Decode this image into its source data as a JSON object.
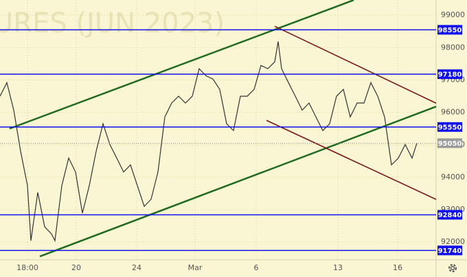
{
  "chart_data": {
    "type": "line",
    "watermark": "URES (JUN 2023)",
    "xlim": [
      0,
      127
    ],
    "xticks": [
      {
        "value": 8,
        "label": "18:00"
      },
      {
        "value": 22.2,
        "label": "20"
      },
      {
        "value": 39.8,
        "label": "24"
      },
      {
        "value": 56.8,
        "label": "Mar"
      },
      {
        "value": 74.6,
        "label": "6"
      },
      {
        "value": 98.4,
        "label": "13"
      },
      {
        "value": 115.8,
        "label": "16"
      }
    ],
    "ylim": [
      91450,
      99470
    ],
    "yticks": [
      92000,
      93000,
      94000,
      95000,
      96000,
      97000,
      98000,
      99000
    ],
    "grid": true,
    "x": [
      0,
      2,
      4,
      6,
      8,
      9,
      11,
      13,
      15,
      16,
      18,
      20,
      22,
      24,
      26,
      28,
      30,
      32,
      34,
      36,
      38,
      40,
      42,
      44,
      46,
      48,
      50,
      52,
      54,
      56,
      58,
      60,
      62,
      64,
      66,
      68,
      70,
      72,
      74,
      76,
      78,
      80,
      81,
      82,
      84,
      86,
      88,
      90,
      92,
      94,
      96,
      98,
      100,
      102,
      104,
      106,
      108,
      110,
      112,
      114,
      116,
      118,
      120,
      121.4
    ],
    "series": [
      {
        "color": "#333333",
        "values": [
          96500,
          96920,
          96070,
          94800,
          93740,
          92040,
          93530,
          92470,
          92250,
          92040,
          93740,
          94590,
          94160,
          92890,
          93740,
          94800,
          95650,
          95010,
          94590,
          94160,
          94380,
          93740,
          93100,
          93320,
          94160,
          95860,
          96290,
          96500,
          96290,
          96500,
          97350,
          97130,
          97030,
          96710,
          95650,
          95440,
          96500,
          96500,
          96710,
          97450,
          97350,
          97560,
          98190,
          97350,
          96920,
          96500,
          96070,
          96290,
          95860,
          95440,
          95650,
          96500,
          96710,
          95860,
          96290,
          96290,
          96920,
          96500,
          95860,
          94380,
          94590,
          95010,
          94590,
          95050
        ]
      }
    ],
    "trendlines": [
      {
        "color": "#1f6b1f",
        "x": [
          2.8,
          103
        ],
        "values": [
          95500,
          99467
        ]
      },
      {
        "color": "#1f6b1f",
        "x": [
          11.6,
          127
        ],
        "values": [
          91555,
          96180
        ]
      },
      {
        "color": "#7a1a1a",
        "x": [
          80,
          127
        ],
        "values": [
          98660,
          96285
        ]
      },
      {
        "color": "#7a1a1a",
        "x": [
          77.6,
          127
        ],
        "values": [
          95755,
          93315
        ]
      }
    ],
    "levels": [
      {
        "value": 98550,
        "color": "#1010ee"
      },
      {
        "value": 97180,
        "color": "#1010ee"
      },
      {
        "value": 95550,
        "color": "#1010ee"
      },
      {
        "value": 92840,
        "color": "#1010ee"
      },
      {
        "value": 91740,
        "color": "#1010ee"
      }
    ],
    "current_price": {
      "value": 95050,
      "color": "#9a9a9a"
    }
  }
}
